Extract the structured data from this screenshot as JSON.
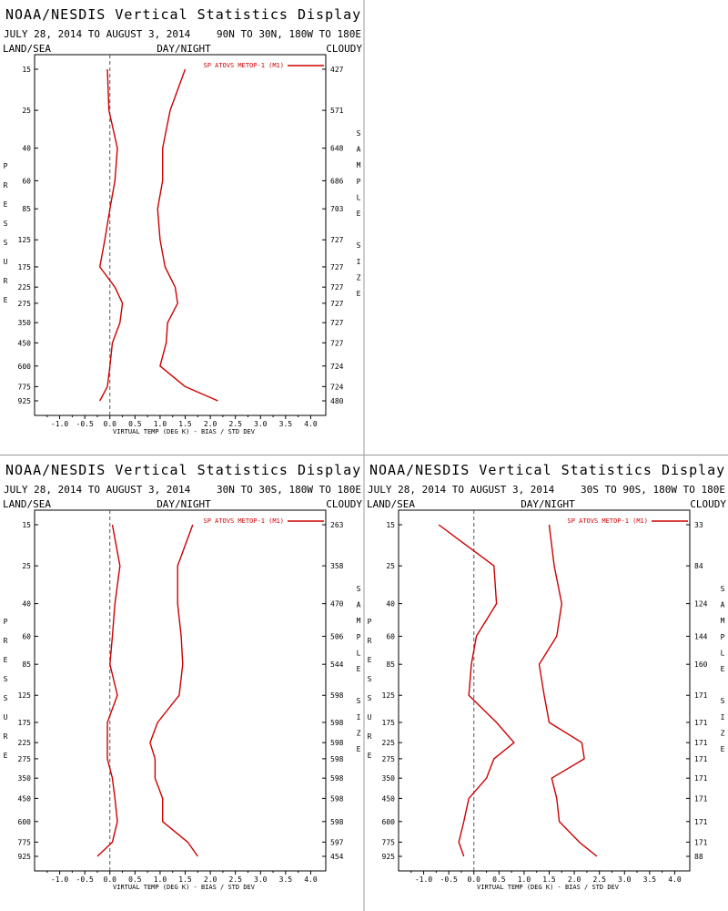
{
  "panel_title": "NOAA/NESDIS Vertical Statistics Display",
  "date_range": "JULY 28, 2014 TO AUGUST 3, 2014",
  "corner_labels": {
    "left": "LAND/SEA",
    "center": "DAY/NIGHT",
    "right": "CLOUDY"
  },
  "left_axis_letters": [
    "P",
    "R",
    "E",
    "S",
    "S",
    "U",
    "R",
    "E"
  ],
  "right_axis_letters": [
    "S",
    "A",
    "M",
    "P",
    "L",
    "E",
    "",
    "S",
    "I",
    "Z",
    "E"
  ],
  "x_axis_label": "VIRTUAL TEMP (DEG K) - BIAS / STD DEV",
  "legend_label": "SP ATOVS METOP-1 (M1)",
  "colors": {
    "series": "#cc0000",
    "axis": "#000000",
    "divider": "#999999"
  },
  "chart_data": [
    {
      "type": "line",
      "region": "90N TO 30N, 180W TO 180E",
      "x_ticks": [
        "-1.0",
        "-0.5",
        "0.0",
        "0.5",
        "1.0",
        "1.5",
        "2.0",
        "2.5",
        "3.0",
        "3.5",
        "4.0"
      ],
      "xlim": [
        -1.5,
        4.3
      ],
      "pressure_levels": [
        "15",
        "25",
        "40",
        "60",
        "85",
        "125",
        "175",
        "225",
        "275",
        "350",
        "450",
        "600",
        "775",
        "925"
      ],
      "sample_size": [
        "427",
        "571",
        "648",
        "686",
        "703",
        "727",
        "727",
        "727",
        "727",
        "727",
        "727",
        "724",
        "724",
        "480"
      ],
      "series": [
        {
          "name": "SP ATOVS METOP-1 (M1)",
          "stat": "bias",
          "values": [
            -0.05,
            -0.02,
            0.15,
            0.1,
            0.0,
            -0.1,
            -0.2,
            0.1,
            0.25,
            0.2,
            0.05,
            0.0,
            -0.05,
            -0.2
          ]
        },
        {
          "name": "SP ATOVS METOP-1 (M1)",
          "stat": "std_dev",
          "values": [
            1.5,
            1.2,
            1.05,
            1.05,
            0.95,
            1.0,
            1.1,
            1.3,
            1.35,
            1.15,
            1.12,
            1.0,
            1.5,
            2.15
          ]
        }
      ]
    },
    {
      "type": "line",
      "region": "30N TO 30S, 180W TO 180E",
      "x_ticks": [
        "-1.0",
        "-0.5",
        "0.0",
        "0.5",
        "1.0",
        "1.5",
        "2.0",
        "2.5",
        "3.0",
        "3.5",
        "4.0"
      ],
      "xlim": [
        -1.5,
        4.3
      ],
      "pressure_levels": [
        "15",
        "25",
        "40",
        "60",
        "85",
        "125",
        "175",
        "225",
        "275",
        "350",
        "450",
        "600",
        "775",
        "925"
      ],
      "sample_size": [
        "263",
        "358",
        "470",
        "506",
        "544",
        "598",
        "598",
        "598",
        "598",
        "598",
        "598",
        "598",
        "597",
        "454"
      ],
      "series": [
        {
          "name": "SP ATOVS METOP-1 (M1)",
          "stat": "bias",
          "values": [
            0.05,
            0.2,
            0.1,
            0.05,
            0.0,
            0.15,
            -0.05,
            -0.05,
            -0.05,
            0.05,
            0.1,
            0.15,
            0.05,
            -0.25
          ]
        },
        {
          "name": "SP ATOVS METOP-1 (M1)",
          "stat": "std_dev",
          "values": [
            1.65,
            1.35,
            1.35,
            1.42,
            1.45,
            1.38,
            0.95,
            0.8,
            0.9,
            0.9,
            1.05,
            1.05,
            1.55,
            1.75
          ]
        }
      ]
    },
    {
      "type": "line",
      "region": "30S TO 90S, 180W TO 180E",
      "x_ticks": [
        "-1.0",
        "-0.5",
        "0.0",
        "0.5",
        "1.0",
        "1.5",
        "2.0",
        "2.5",
        "3.0",
        "3.5",
        "4.0"
      ],
      "xlim": [
        -1.5,
        4.3
      ],
      "pressure_levels": [
        "15",
        "25",
        "40",
        "60",
        "85",
        "125",
        "175",
        "225",
        "275",
        "350",
        "450",
        "600",
        "775",
        "925"
      ],
      "sample_size": [
        "33",
        "84",
        "124",
        "144",
        "160",
        "171",
        "171",
        "171",
        "171",
        "171",
        "171",
        "171",
        "171",
        "88"
      ],
      "series": [
        {
          "name": "SP ATOVS METOP-1 (M1)",
          "stat": "bias",
          "values": [
            -0.7,
            0.4,
            0.45,
            0.05,
            -0.05,
            -0.1,
            0.45,
            0.8,
            0.4,
            0.25,
            -0.1,
            -0.2,
            -0.3,
            -0.2
          ]
        },
        {
          "name": "SP ATOVS METOP-1 (M1)",
          "stat": "std_dev",
          "values": [
            1.5,
            1.6,
            1.75,
            1.65,
            1.3,
            1.4,
            1.5,
            2.15,
            2.2,
            1.55,
            1.65,
            1.7,
            2.1,
            2.45
          ]
        }
      ]
    }
  ]
}
